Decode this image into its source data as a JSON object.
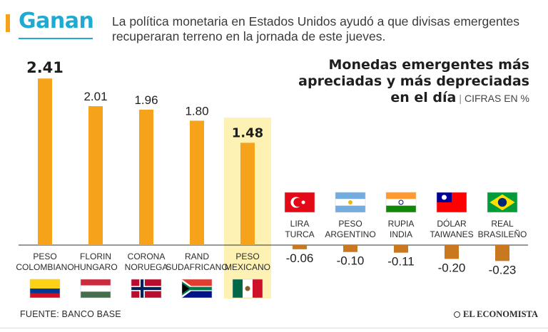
{
  "header": {
    "section_title": "Ganan",
    "subtitle": "La política monetaria en Estados Unidos ayudó a que divisas emergentes recuperaran terreno en la jornada de este jueves."
  },
  "colors": {
    "accent": "#1eaad2",
    "accent_bar": "#f7a21b",
    "positive_bar": "#f7a21b",
    "negative_bar": "#c9781f",
    "highlight_bg": "#fdf1b3",
    "baseline": "#333333"
  },
  "chart_data": {
    "type": "bar",
    "title_lines": [
      "Monedas emergentes más",
      "apreciadas y más depreciadas",
      "en el día"
    ],
    "unit_label": "CIFRAS EN %",
    "categories": [
      {
        "id": "cop",
        "label": [
          "PESO",
          "COLOMBIANO"
        ],
        "flag": "colombia-flag"
      },
      {
        "id": "huf",
        "label": [
          "FLORIN",
          "HUNGARO"
        ],
        "flag": "hungary-flag"
      },
      {
        "id": "nok",
        "label": [
          "CORONA",
          "NORUEGA"
        ],
        "flag": "norway-flag"
      },
      {
        "id": "zar",
        "label": [
          "RAND",
          "SUDAFRICANO"
        ],
        "flag": "south-africa-flag"
      },
      {
        "id": "mxn",
        "label": [
          "PESO",
          "MEXICANO"
        ],
        "flag": "mexico-flag",
        "highlight": true
      },
      {
        "id": "try",
        "label": [
          "LIRA",
          "TURCA"
        ],
        "flag": "turkey-flag"
      },
      {
        "id": "ars",
        "label": [
          "PESO",
          "ARGENTINO"
        ],
        "flag": "argentina-flag"
      },
      {
        "id": "inr",
        "label": [
          "RUPIA",
          "INDIA"
        ],
        "flag": "india-flag"
      },
      {
        "id": "twd",
        "label": [
          "DÓLAR",
          "TAIWANES"
        ],
        "flag": "taiwan-flag"
      },
      {
        "id": "brl",
        "label": [
          "REAL",
          "BRASILEÑO"
        ],
        "flag": "brazil-flag"
      }
    ],
    "values": [
      2.41,
      2.01,
      1.96,
      1.8,
      1.48,
      -0.06,
      -0.1,
      -0.11,
      -0.2,
      -0.23
    ],
    "value_labels": [
      "2.41",
      "2.01",
      "1.96",
      "1.80",
      "1.48",
      "-0.06",
      "-0.10",
      "-0.11",
      "-0.20",
      "-0.23"
    ],
    "ylim": [
      -0.3,
      2.5
    ]
  },
  "footer": {
    "source": "FUENTE: BANCO BASE",
    "brand": "EL ECONOMISTA"
  }
}
